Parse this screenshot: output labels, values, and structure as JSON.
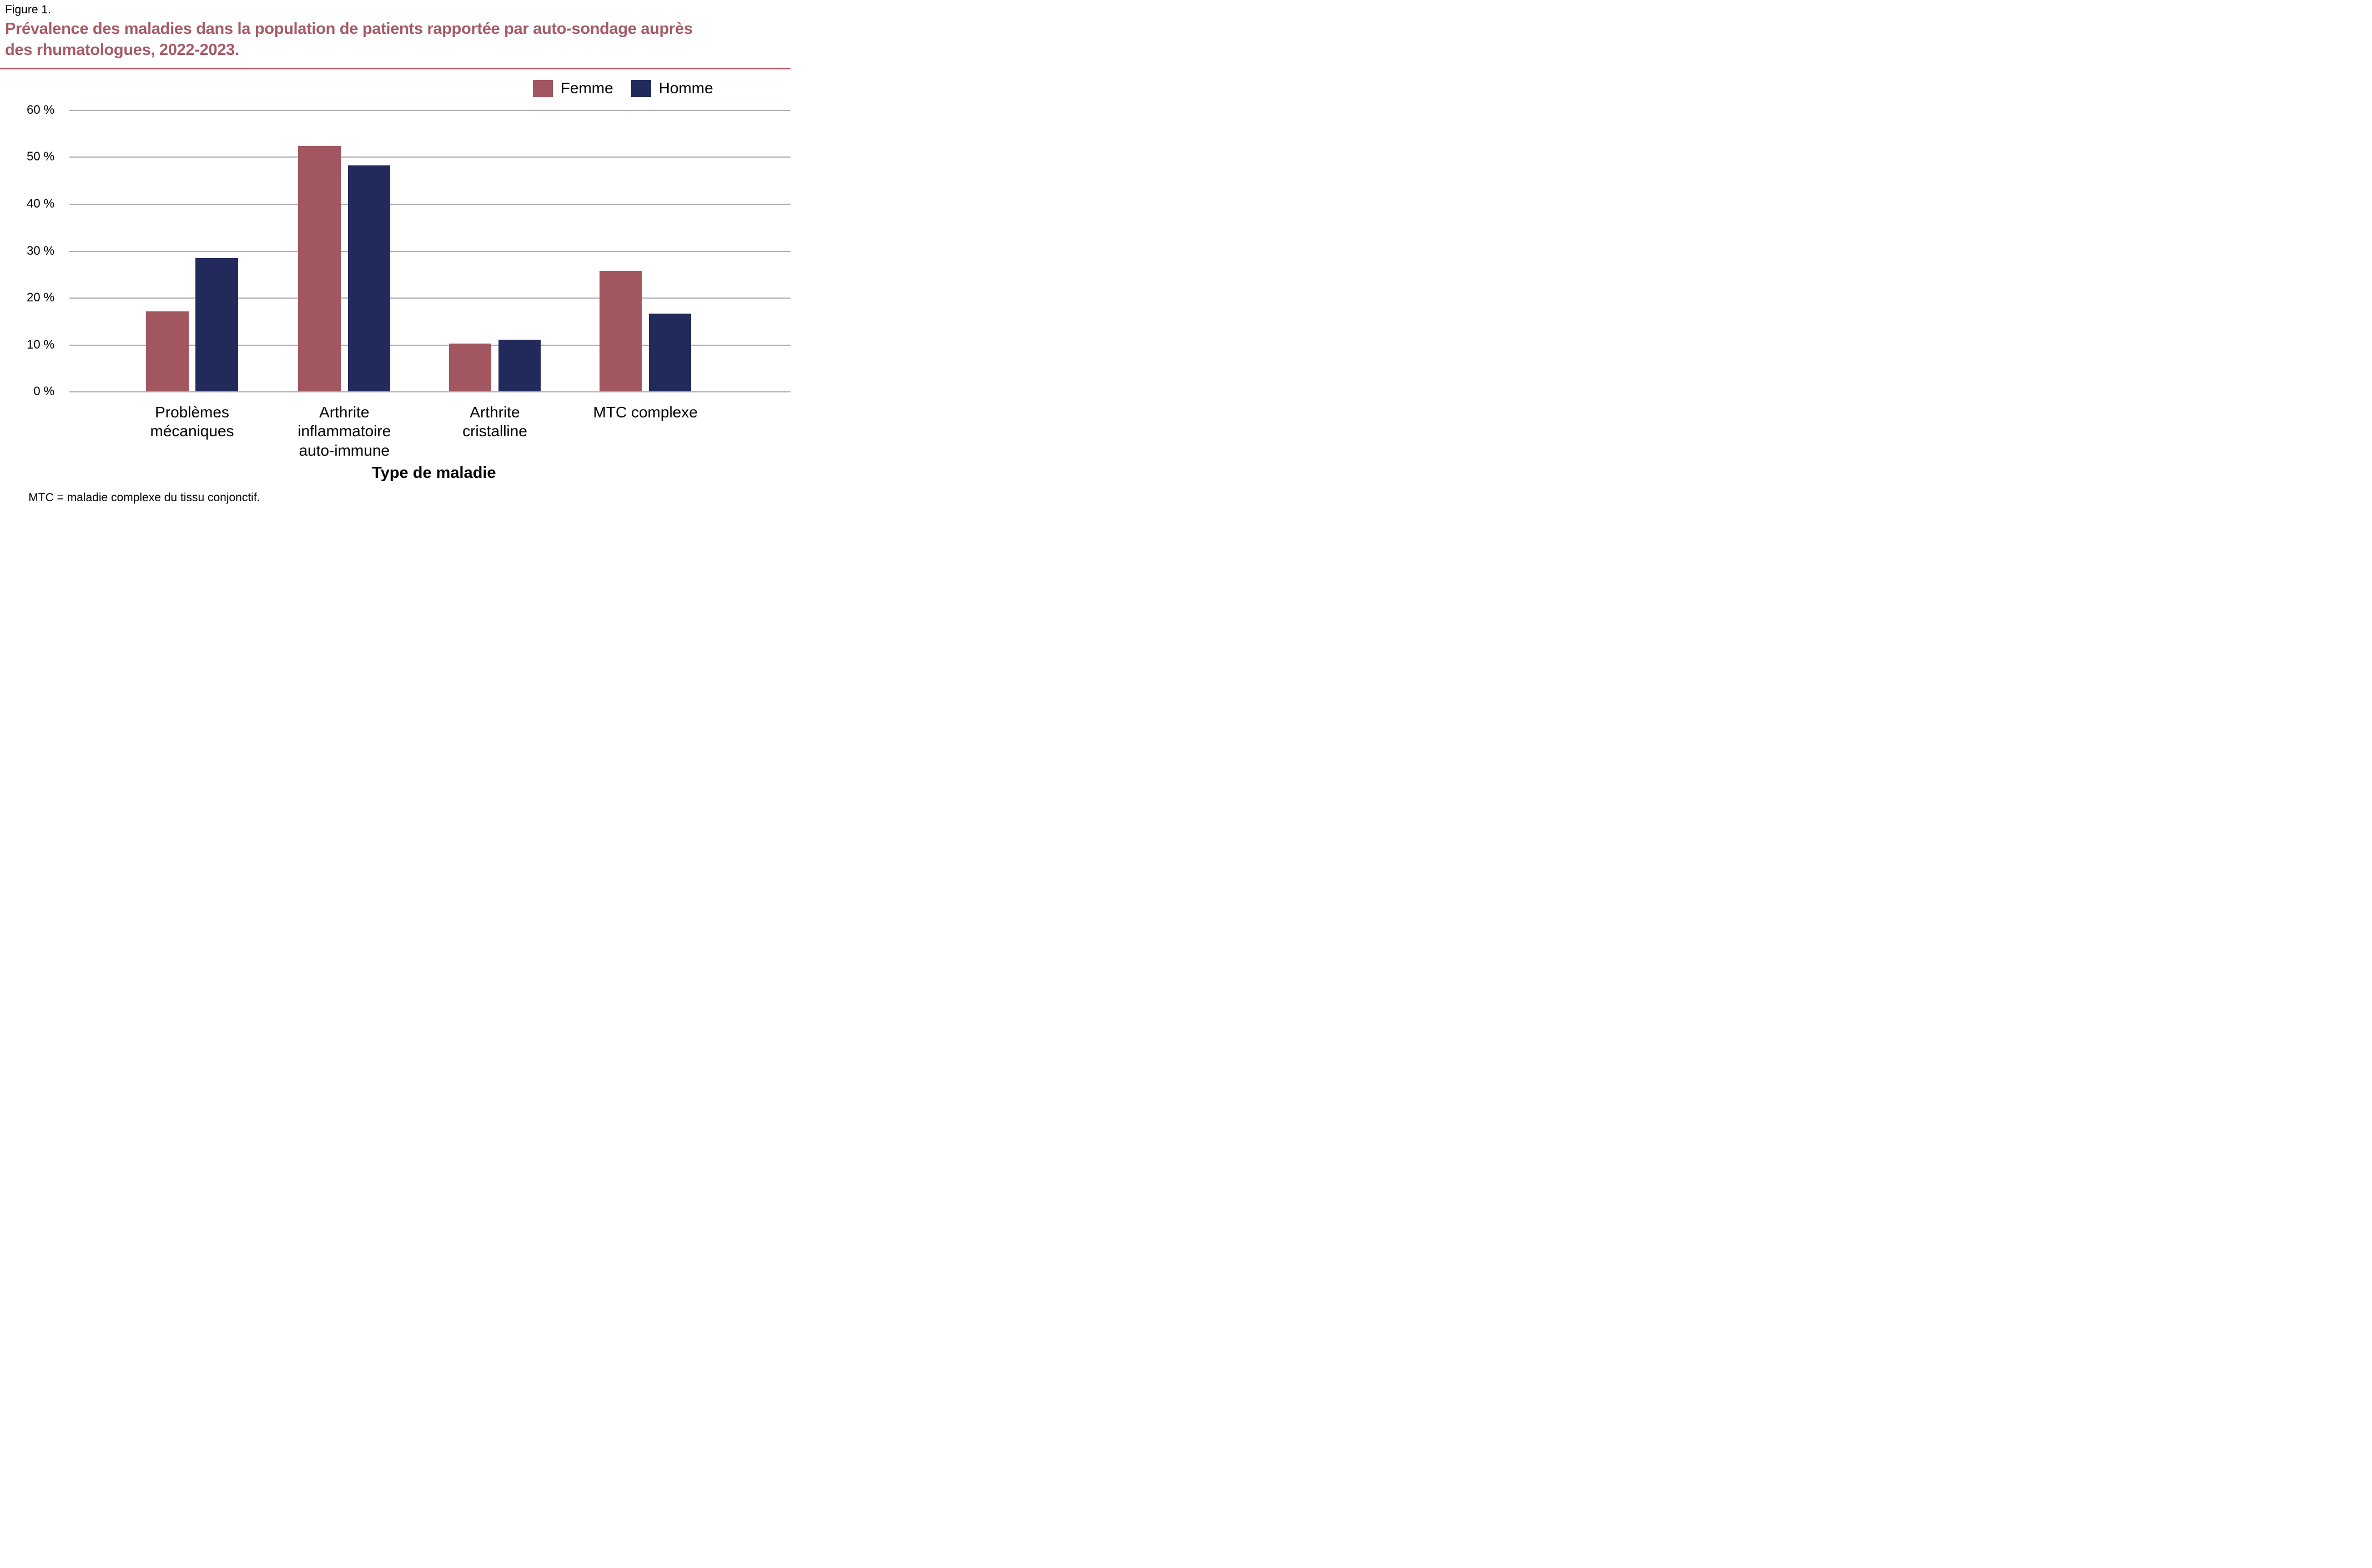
{
  "figure_label": "Figure 1.",
  "header": {
    "title_line1": "Prévalence des maladies dans la population de patients rapportée par auto-sondage auprès",
    "title_line2": "des rhumatologues, 2022-2023."
  },
  "colors": {
    "title": "#a65b67",
    "rule": "#a65b67",
    "femme": "#a2565f",
    "homme": "#222a5b",
    "gridline": "#aaaeb1"
  },
  "legend": [
    {
      "label": "Femme",
      "color": "#a2565f"
    },
    {
      "label": "Homme",
      "color": "#222a5b"
    }
  ],
  "y_axis": {
    "tick_labels": [
      "0 %",
      "10 %",
      "20 %",
      "30 %",
      "40 %",
      "50 %",
      "60 %"
    ]
  },
  "axis_title": "Type de maladie",
  "footnote": "MTC = maladie complexe du tissu conjonctif.",
  "chart_data": {
    "type": "bar",
    "title": "Prévalence des maladies dans la population de patients rapportée par auto-sondage auprès des rhumatologues, 2022-2023.",
    "categories": [
      "Problèmes mécaniques",
      "Arthrite inflammatoire auto-immune",
      "Arthrite cristalline",
      "MTC complexe"
    ],
    "category_label_lines": [
      [
        "Problèmes",
        "mécaniques"
      ],
      [
        "Arthrite",
        "inflammatoire",
        "auto-immune"
      ],
      [
        "Arthrite",
        "cristalline"
      ],
      [
        "MTC complexe"
      ]
    ],
    "series": [
      {
        "name": "Femme",
        "color": "#a2565f",
        "values": [
          17.0,
          52.3,
          10.2,
          25.7
        ]
      },
      {
        "name": "Homme",
        "color": "#222a5b",
        "values": [
          28.4,
          48.1,
          11.0,
          16.6
        ]
      }
    ],
    "xlabel": "Type de maladie",
    "ylabel": "",
    "ylim": [
      0,
      60
    ],
    "ytick_step": 10,
    "ytick_suffix": " %",
    "grid": true,
    "legend_position": "top-right"
  }
}
